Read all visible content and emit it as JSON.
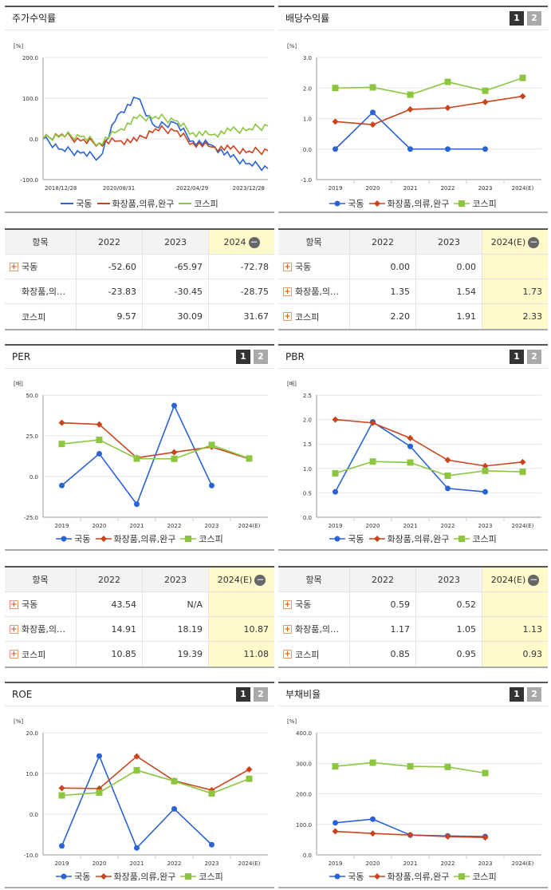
{
  "legend_labels": [
    "국동",
    "화장품,의류,완구",
    "코스피"
  ],
  "colors": {
    "s1": "#2a63d4",
    "s2": "#c9441c",
    "s3": "#8cc63f"
  },
  "button_1": "1",
  "button_2": "2",
  "minus_symbol": "−",
  "plus_symbol": "+",
  "panels": {
    "stock": {
      "title": "주가수익률",
      "unit": "[%]",
      "yticks": [
        "200.0",
        "100.0",
        "0.0",
        "-100.0"
      ],
      "xticks": [
        "2018/12/28",
        "2020/08/31",
        "2022/04/29",
        "2023/12/28"
      ]
    },
    "dividend": {
      "title": "배당수익률",
      "unit": "[%]",
      "yticks": [
        "3.0",
        "2.0",
        "1.0",
        "0.0",
        "-1.0"
      ],
      "xticks": [
        "2019",
        "2020",
        "2021",
        "2022",
        "2023",
        "2024(E)"
      ]
    },
    "per": {
      "title": "PER",
      "unit": "[배]",
      "yticks": [
        "50.0",
        "25.0",
        "0.0",
        "-25.0"
      ],
      "xticks": [
        "2019",
        "2020",
        "2021",
        "2022",
        "2023",
        "2024(E)"
      ]
    },
    "pbr": {
      "title": "PBR",
      "unit": "[배]",
      "yticks": [
        "2.5",
        "2.0",
        "1.5",
        "1.0",
        "0.5",
        "0.0"
      ],
      "xticks": [
        "2019",
        "2020",
        "2021",
        "2022",
        "2023",
        "2024(E)"
      ]
    },
    "roe": {
      "title": "ROE",
      "unit": "[%]",
      "yticks": [
        "20.0",
        "10.0",
        "0.0",
        "-10.0"
      ],
      "xticks": [
        "2019",
        "2020",
        "2021",
        "2022",
        "2023",
        "2024(E)"
      ]
    },
    "debt": {
      "title": "부채비율",
      "unit": "[%]",
      "yticks": [
        "400.0",
        "300.0",
        "200.0",
        "100.0",
        "0.0"
      ],
      "xticks": [
        "2019",
        "2020",
        "2021",
        "2022",
        "2023",
        "2024(E)"
      ]
    }
  },
  "tables": {
    "stock": {
      "headers": [
        "항목",
        "2022",
        "2023",
        "2024"
      ],
      "rows": [
        {
          "name": "국동",
          "plus": true,
          "v": [
            "-52.60",
            "-65.97",
            "-72.78"
          ]
        },
        {
          "name": "화장품,의…",
          "plus": false,
          "v": [
            "-23.83",
            "-30.45",
            "-28.75"
          ]
        },
        {
          "name": "코스피",
          "plus": false,
          "v": [
            "9.57",
            "30.09",
            "31.67"
          ]
        }
      ]
    },
    "dividend": {
      "headers": [
        "항목",
        "2022",
        "2023",
        "2024(E)"
      ],
      "rows": [
        {
          "name": "국동",
          "plus": true,
          "v": [
            "0.00",
            "0.00",
            ""
          ]
        },
        {
          "name": "화장품,의…",
          "plus": true,
          "v": [
            "1.35",
            "1.54",
            "1.73"
          ]
        },
        {
          "name": "코스피",
          "plus": true,
          "v": [
            "2.20",
            "1.91",
            "2.33"
          ]
        }
      ]
    },
    "per": {
      "headers": [
        "항목",
        "2022",
        "2023",
        "2024(E)"
      ],
      "rows": [
        {
          "name": "국동",
          "plus": true,
          "v": [
            "43.54",
            "N/A",
            ""
          ]
        },
        {
          "name": "화장품,의…",
          "plus": true,
          "v": [
            "14.91",
            "18.19",
            "10.87"
          ]
        },
        {
          "name": "코스피",
          "plus": true,
          "v": [
            "10.85",
            "19.39",
            "11.08"
          ]
        }
      ]
    },
    "pbr": {
      "headers": [
        "항목",
        "2022",
        "2023",
        "2024(E)"
      ],
      "rows": [
        {
          "name": "국동",
          "plus": true,
          "v": [
            "0.59",
            "0.52",
            ""
          ]
        },
        {
          "name": "화장품,의…",
          "plus": true,
          "v": [
            "1.17",
            "1.05",
            "1.13"
          ]
        },
        {
          "name": "코스피",
          "plus": true,
          "v": [
            "0.85",
            "0.95",
            "0.93"
          ]
        }
      ]
    }
  },
  "chart_data": [
    {
      "id": "stock",
      "type": "line",
      "title": "주가수익률",
      "ylabel": "[%]",
      "ylim": [
        -100,
        200
      ],
      "x": [
        "2018/12/28",
        "2019/06",
        "2019/12",
        "2020/03",
        "2020/08/31",
        "2020/12",
        "2021/06",
        "2021/12",
        "2022/04/29",
        "2022/08",
        "2022/12",
        "2023/06",
        "2023/12/28"
      ],
      "series": [
        {
          "name": "국동",
          "values": [
            0,
            -25,
            -35,
            -45,
            60,
            100,
            30,
            40,
            -5,
            -15,
            -45,
            -60,
            -73
          ]
        },
        {
          "name": "화장품,의류,완구",
          "values": [
            0,
            12,
            -5,
            -10,
            -5,
            -5,
            25,
            20,
            -10,
            -20,
            -25,
            -30,
            -29
          ]
        },
        {
          "name": "코스피",
          "values": [
            0,
            10,
            5,
            -10,
            20,
            50,
            55,
            45,
            15,
            10,
            20,
            25,
            32
          ]
        }
      ]
    },
    {
      "id": "dividend",
      "type": "line",
      "title": "배당수익률",
      "ylabel": "[%]",
      "ylim": [
        -1,
        3
      ],
      "x": [
        "2019",
        "2020",
        "2021",
        "2022",
        "2023",
        "2024(E)"
      ],
      "series": [
        {
          "name": "국동",
          "values": [
            0,
            1.2,
            0,
            0,
            0,
            null
          ]
        },
        {
          "name": "화장품,의류,완구",
          "values": [
            0.9,
            0.8,
            1.3,
            1.35,
            1.54,
            1.73
          ]
        },
        {
          "name": "코스피",
          "values": [
            2.0,
            2.02,
            1.78,
            2.2,
            1.91,
            2.33
          ]
        }
      ]
    },
    {
      "id": "per",
      "type": "line",
      "title": "PER",
      "ylabel": "[배]",
      "ylim": [
        -25,
        50
      ],
      "x": [
        "2019",
        "2020",
        "2021",
        "2022",
        "2023",
        "2024(E)"
      ],
      "series": [
        {
          "name": "국동",
          "values": [
            -5.5,
            14,
            -17,
            43.54,
            -5.5,
            null
          ]
        },
        {
          "name": "화장품,의류,완구",
          "values": [
            33,
            32,
            11.5,
            14.91,
            18.19,
            10.87
          ]
        },
        {
          "name": "코스피",
          "values": [
            20,
            22.5,
            11,
            10.85,
            19.39,
            11.08
          ]
        }
      ]
    },
    {
      "id": "pbr",
      "type": "line",
      "title": "PBR",
      "ylabel": "[배]",
      "ylim": [
        0,
        2.5
      ],
      "x": [
        "2019",
        "2020",
        "2021",
        "2022",
        "2023",
        "2024(E)"
      ],
      "series": [
        {
          "name": "국동",
          "values": [
            0.52,
            1.95,
            1.45,
            0.59,
            0.52,
            null
          ]
        },
        {
          "name": "화장품,의류,완구",
          "values": [
            2.0,
            1.93,
            1.62,
            1.17,
            1.05,
            1.13
          ]
        },
        {
          "name": "코스피",
          "values": [
            0.9,
            1.14,
            1.12,
            0.85,
            0.95,
            0.93
          ]
        }
      ]
    },
    {
      "id": "roe",
      "type": "line",
      "title": "ROE",
      "ylabel": "[%]",
      "ylim": [
        -10,
        20
      ],
      "x": [
        "2019",
        "2020",
        "2021",
        "2022",
        "2023",
        "2024(E)"
      ],
      "series": [
        {
          "name": "국동",
          "values": [
            -7.8,
            14.3,
            -8.3,
            1.3,
            -7.5,
            null
          ]
        },
        {
          "name": "화장품,의류,완구",
          "values": [
            6.4,
            6.3,
            14.2,
            8.2,
            5.9,
            11.0
          ]
        },
        {
          "name": "코스피",
          "values": [
            4.6,
            5.3,
            10.8,
            8.1,
            5.1,
            8.7
          ]
        }
      ]
    },
    {
      "id": "debt",
      "type": "line",
      "title": "부채비율",
      "ylabel": "[%]",
      "ylim": [
        0,
        400
      ],
      "x": [
        "2019",
        "2020",
        "2021",
        "2022",
        "2023",
        "2024(E)"
      ],
      "series": [
        {
          "name": "국동",
          "values": [
            105,
            117,
            65,
            62,
            60,
            null
          ]
        },
        {
          "name": "화장품,의류,완구",
          "values": [
            77,
            70,
            65,
            60,
            57,
            null
          ]
        },
        {
          "name": "코스피",
          "values": [
            290,
            302,
            290,
            288,
            268,
            null
          ]
        }
      ]
    }
  ]
}
